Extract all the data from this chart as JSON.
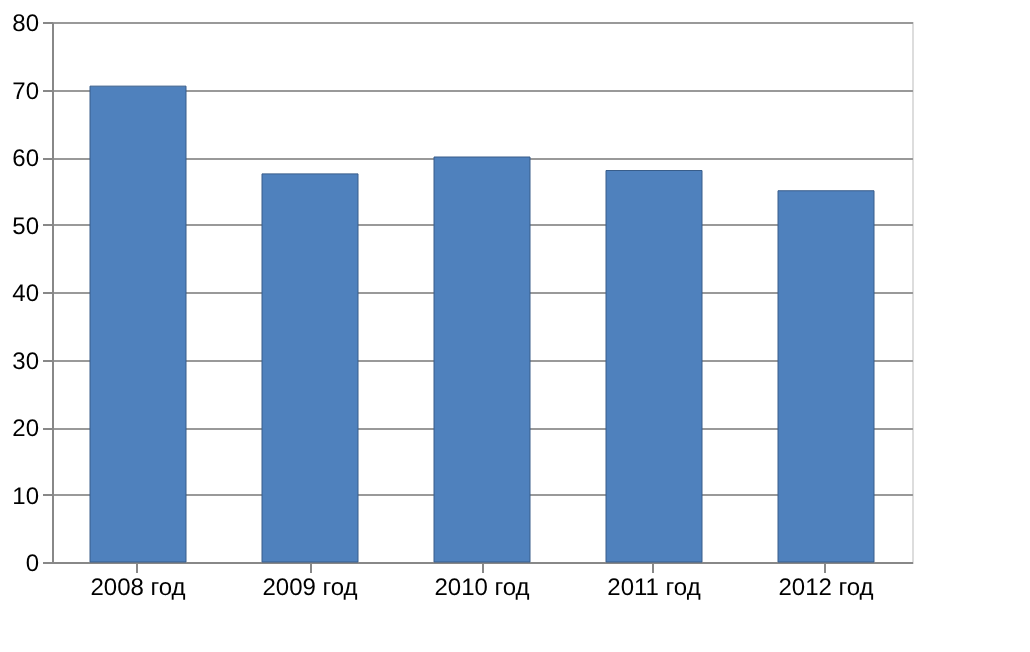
{
  "chart_data": {
    "type": "bar",
    "categories": [
      "2008 год",
      "2009 год",
      "2010 год",
      "2011 год",
      "2012 год"
    ],
    "values": [
      70.5,
      57.5,
      60,
      58,
      55
    ],
    "color": "#4f81bd",
    "ylim": [
      0,
      80
    ],
    "yticks": [
      0,
      10,
      20,
      30,
      40,
      50,
      60,
      70,
      80
    ],
    "grid": "y"
  }
}
